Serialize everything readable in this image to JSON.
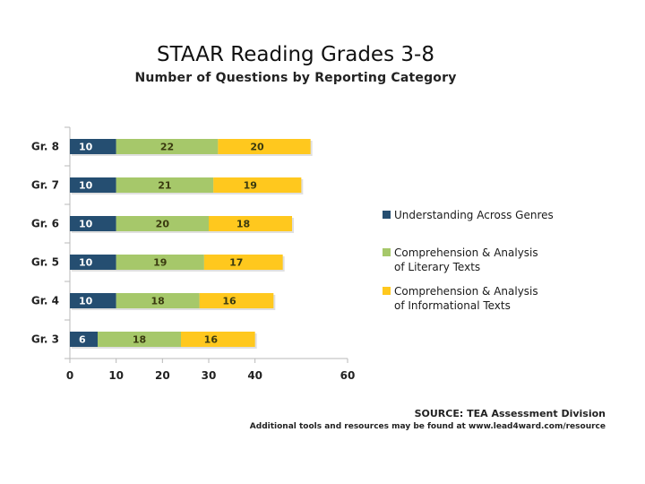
{
  "chart_data": {
    "type": "bar",
    "orientation": "horizontal",
    "stacked": true,
    "title": "STAAR Reading Grades 3-8",
    "subtitle": "Number of Questions by Reporting Category",
    "categories": [
      "Gr. 8",
      "Gr. 7",
      "Gr. 6",
      "Gr. 5",
      "Gr. 4",
      "Gr. 3"
    ],
    "series": [
      {
        "name": "Understanding Across Genres",
        "color": "#254E71",
        "values": [
          10,
          10,
          10,
          10,
          10,
          6
        ]
      },
      {
        "name": "Comprehension & Analysis of Literary Texts",
        "color": "#A6C86A",
        "values": [
          22,
          21,
          20,
          19,
          18,
          18
        ]
      },
      {
        "name": "Comprehension & Analysis of Informational Texts",
        "color": "#FFC81E",
        "values": [
          20,
          19,
          18,
          17,
          16,
          16
        ]
      }
    ],
    "xticks": [
      0,
      10,
      20,
      30,
      40,
      60
    ],
    "xlim": [
      0,
      60
    ],
    "xlabel": "",
    "ylabel": "",
    "legend": "right"
  },
  "footer": {
    "source": "SOURCE: TEA Assessment Division",
    "resources": "Additional tools and resources may be found at  www.lead4ward.com/resource"
  }
}
